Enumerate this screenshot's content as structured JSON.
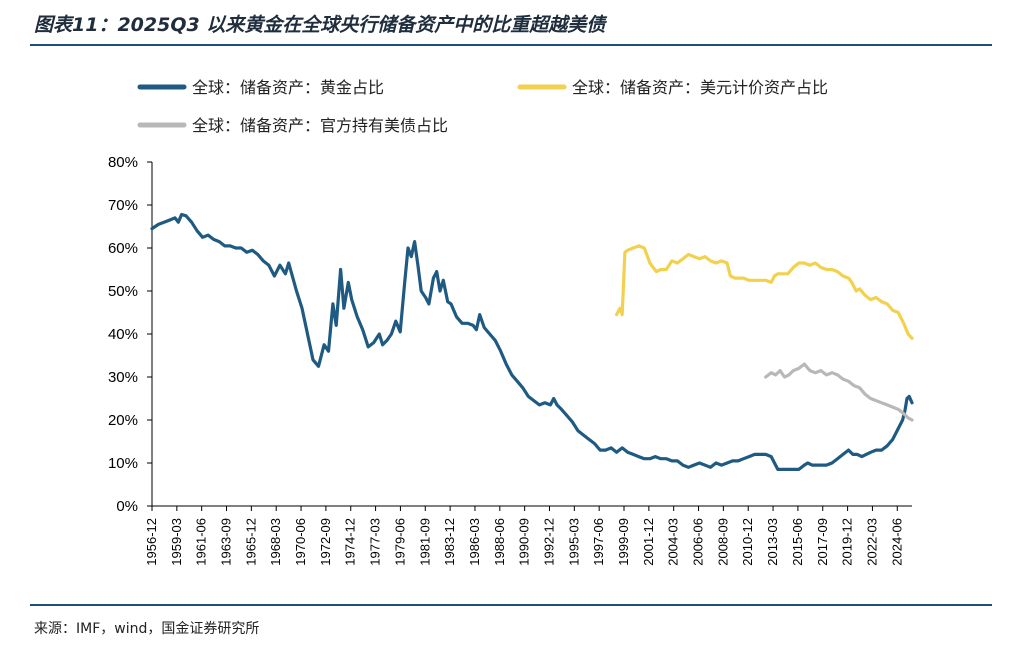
{
  "header": {
    "title": "图表11：2025Q3 以来黄金在全球央行储备资产中的比重超越美债"
  },
  "footer": {
    "source": "来源：IMF，wind，国金证券研究所"
  },
  "colors": {
    "gold_share": "#1f5a82",
    "usd_assets": "#f2d14f",
    "us_treasury": "#b8b8b8",
    "rule": "#1f4e79"
  },
  "chart_data": {
    "type": "line",
    "title": "",
    "xlabel": "",
    "ylabel": "",
    "ylim": [
      0,
      80
    ],
    "yticks": [
      "0%",
      "10%",
      "20%",
      "30%",
      "40%",
      "50%",
      "60%",
      "70%",
      "80%"
    ],
    "x_range": [
      1956.917,
      2025.75
    ],
    "xticks": [
      "1956-12",
      "1959-03",
      "1961-06",
      "1963-09",
      "1965-12",
      "1968-03",
      "1970-06",
      "1972-09",
      "1974-12",
      "1977-03",
      "1979-06",
      "1981-09",
      "1983-12",
      "1986-03",
      "1988-06",
      "1990-09",
      "1992-12",
      "1995-03",
      "1997-06",
      "1999-09",
      "2001-12",
      "2004-03",
      "2006-06",
      "2008-09",
      "2010-12",
      "2013-03",
      "2015-06",
      "2017-09",
      "2019-12",
      "2022-03",
      "2024-06"
    ],
    "grid": false,
    "legend_position": "top",
    "series": [
      {
        "name": "全球：储备资产：黄金占比",
        "color": "#1f5a82",
        "points": [
          [
            1956.92,
            64.5
          ],
          [
            1957.5,
            65.5
          ],
          [
            1958.0,
            66.0
          ],
          [
            1958.5,
            66.5
          ],
          [
            1959.0,
            67.0
          ],
          [
            1959.3,
            66.0
          ],
          [
            1959.6,
            67.8
          ],
          [
            1960.0,
            67.5
          ],
          [
            1960.5,
            66.0
          ],
          [
            1961.0,
            64.0
          ],
          [
            1961.5,
            62.5
          ],
          [
            1962.0,
            63.0
          ],
          [
            1962.5,
            62.0
          ],
          [
            1963.0,
            61.5
          ],
          [
            1963.5,
            60.5
          ],
          [
            1964.0,
            60.5
          ],
          [
            1964.5,
            60.0
          ],
          [
            1965.0,
            60.0
          ],
          [
            1965.5,
            59.0
          ],
          [
            1966.0,
            59.5
          ],
          [
            1966.5,
            58.5
          ],
          [
            1967.0,
            57.0
          ],
          [
            1967.5,
            56.0
          ],
          [
            1968.0,
            53.5
          ],
          [
            1968.5,
            56.0
          ],
          [
            1969.0,
            54.0
          ],
          [
            1969.3,
            56.5
          ],
          [
            1970.0,
            50.0
          ],
          [
            1970.5,
            46.0
          ],
          [
            1971.0,
            40.0
          ],
          [
            1971.5,
            34.0
          ],
          [
            1972.0,
            32.5
          ],
          [
            1972.5,
            37.5
          ],
          [
            1972.9,
            36.0
          ],
          [
            1973.3,
            47.0
          ],
          [
            1973.6,
            42.0
          ],
          [
            1974.0,
            55.0
          ],
          [
            1974.3,
            46.0
          ],
          [
            1974.7,
            52.0
          ],
          [
            1975.0,
            48.0
          ],
          [
            1975.5,
            44.0
          ],
          [
            1976.0,
            41.0
          ],
          [
            1976.5,
            37.0
          ],
          [
            1977.0,
            38.0
          ],
          [
            1977.5,
            40.0
          ],
          [
            1977.8,
            37.5
          ],
          [
            1978.2,
            38.5
          ],
          [
            1978.6,
            40.0
          ],
          [
            1979.0,
            43.0
          ],
          [
            1979.4,
            40.5
          ],
          [
            1979.8,
            52.0
          ],
          [
            1980.1,
            60.0
          ],
          [
            1980.4,
            58.0
          ],
          [
            1980.7,
            61.5
          ],
          [
            1981.0,
            56.0
          ],
          [
            1981.3,
            50.0
          ],
          [
            1981.7,
            48.5
          ],
          [
            1982.0,
            47.0
          ],
          [
            1982.4,
            53.0
          ],
          [
            1982.7,
            54.5
          ],
          [
            1983.0,
            50.0
          ],
          [
            1983.3,
            52.5
          ],
          [
            1983.7,
            47.5
          ],
          [
            1984.0,
            47.0
          ],
          [
            1984.5,
            44.0
          ],
          [
            1985.0,
            42.5
          ],
          [
            1985.5,
            42.5
          ],
          [
            1986.0,
            42.0
          ],
          [
            1986.3,
            41.0
          ],
          [
            1986.6,
            44.5
          ],
          [
            1987.0,
            41.5
          ],
          [
            1987.5,
            40.0
          ],
          [
            1988.0,
            38.5
          ],
          [
            1988.5,
            36.0
          ],
          [
            1989.0,
            33.0
          ],
          [
            1989.5,
            30.5
          ],
          [
            1990.0,
            29.0
          ],
          [
            1990.5,
            27.5
          ],
          [
            1991.0,
            25.5
          ],
          [
            1991.5,
            24.5
          ],
          [
            1992.0,
            23.5
          ],
          [
            1992.5,
            24.0
          ],
          [
            1993.0,
            23.5
          ],
          [
            1993.3,
            25.0
          ],
          [
            1993.6,
            23.5
          ],
          [
            1994.0,
            22.5
          ],
          [
            1994.5,
            21.0
          ],
          [
            1995.0,
            19.5
          ],
          [
            1995.5,
            17.5
          ],
          [
            1996.0,
            16.5
          ],
          [
            1996.5,
            15.5
          ],
          [
            1997.0,
            14.5
          ],
          [
            1997.5,
            13.0
          ],
          [
            1998.0,
            13.0
          ],
          [
            1998.5,
            13.5
          ],
          [
            1999.0,
            12.5
          ],
          [
            1999.5,
            13.5
          ],
          [
            2000.0,
            12.5
          ],
          [
            2000.5,
            12.0
          ],
          [
            2001.0,
            11.5
          ],
          [
            2001.5,
            11.0
          ],
          [
            2002.0,
            11.0
          ],
          [
            2002.5,
            11.5
          ],
          [
            2003.0,
            11.0
          ],
          [
            2003.5,
            11.0
          ],
          [
            2004.0,
            10.5
          ],
          [
            2004.5,
            10.5
          ],
          [
            2005.0,
            9.5
          ],
          [
            2005.5,
            9.0
          ],
          [
            2006.0,
            9.5
          ],
          [
            2006.5,
            10.0
          ],
          [
            2007.0,
            9.5
          ],
          [
            2007.5,
            9.0
          ],
          [
            2008.0,
            10.0
          ],
          [
            2008.5,
            9.5
          ],
          [
            2009.0,
            10.0
          ],
          [
            2009.5,
            10.5
          ],
          [
            2010.0,
            10.5
          ],
          [
            2010.5,
            11.0
          ],
          [
            2011.0,
            11.5
          ],
          [
            2011.5,
            12.0
          ],
          [
            2012.0,
            12.0
          ],
          [
            2012.5,
            12.0
          ],
          [
            2013.0,
            11.5
          ],
          [
            2013.4,
            9.5
          ],
          [
            2013.6,
            8.5
          ],
          [
            2014.0,
            8.5
          ],
          [
            2014.5,
            8.5
          ],
          [
            2015.0,
            8.5
          ],
          [
            2015.5,
            8.5
          ],
          [
            2016.0,
            9.5
          ],
          [
            2016.3,
            10.0
          ],
          [
            2016.7,
            9.5
          ],
          [
            2017.0,
            9.5
          ],
          [
            2017.5,
            9.5
          ],
          [
            2018.0,
            9.5
          ],
          [
            2018.5,
            10.0
          ],
          [
            2019.0,
            11.0
          ],
          [
            2019.5,
            12.0
          ],
          [
            2020.0,
            13.0
          ],
          [
            2020.4,
            12.0
          ],
          [
            2020.8,
            12.0
          ],
          [
            2021.2,
            11.5
          ],
          [
            2021.6,
            12.0
          ],
          [
            2022.0,
            12.5
          ],
          [
            2022.5,
            13.0
          ],
          [
            2023.0,
            13.0
          ],
          [
            2023.5,
            14.0
          ],
          [
            2024.0,
            15.5
          ],
          [
            2024.5,
            18.0
          ],
          [
            2024.9,
            20.0
          ],
          [
            2025.1,
            22.0
          ],
          [
            2025.3,
            25.0
          ],
          [
            2025.5,
            25.5
          ],
          [
            2025.75,
            24.0
          ]
        ]
      },
      {
        "name": "全球：储备资产：美元计价资产占比",
        "color": "#f2d14f",
        "points": [
          [
            1999.0,
            44.5
          ],
          [
            1999.3,
            46.0
          ],
          [
            1999.5,
            44.5
          ],
          [
            1999.75,
            59.0
          ],
          [
            2000.0,
            59.5
          ],
          [
            2000.5,
            60.0
          ],
          [
            2001.0,
            60.5
          ],
          [
            2001.5,
            60.0
          ],
          [
            2001.8,
            58.0
          ],
          [
            2002.0,
            56.5
          ],
          [
            2002.3,
            55.5
          ],
          [
            2002.6,
            54.5
          ],
          [
            2003.0,
            55.0
          ],
          [
            2003.5,
            55.0
          ],
          [
            2004.0,
            57.0
          ],
          [
            2004.5,
            56.5
          ],
          [
            2005.0,
            57.5
          ],
          [
            2005.5,
            58.5
          ],
          [
            2006.0,
            58.0
          ],
          [
            2006.5,
            57.5
          ],
          [
            2007.0,
            58.0
          ],
          [
            2007.5,
            57.0
          ],
          [
            2008.0,
            56.5
          ],
          [
            2008.5,
            57.0
          ],
          [
            2009.0,
            56.5
          ],
          [
            2009.3,
            53.5
          ],
          [
            2009.7,
            53.0
          ],
          [
            2010.0,
            53.0
          ],
          [
            2010.5,
            53.0
          ],
          [
            2011.0,
            52.5
          ],
          [
            2011.5,
            52.5
          ],
          [
            2012.0,
            52.5
          ],
          [
            2012.5,
            52.5
          ],
          [
            2013.0,
            52.0
          ],
          [
            2013.3,
            53.5
          ],
          [
            2013.6,
            54.0
          ],
          [
            2014.0,
            54.0
          ],
          [
            2014.5,
            54.0
          ],
          [
            2015.0,
            55.5
          ],
          [
            2015.5,
            56.5
          ],
          [
            2016.0,
            56.5
          ],
          [
            2016.5,
            56.0
          ],
          [
            2017.0,
            56.5
          ],
          [
            2017.5,
            55.5
          ],
          [
            2018.0,
            55.0
          ],
          [
            2018.5,
            55.0
          ],
          [
            2019.0,
            54.5
          ],
          [
            2019.5,
            53.5
          ],
          [
            2020.0,
            53.0
          ],
          [
            2020.3,
            52.0
          ],
          [
            2020.7,
            50.0
          ],
          [
            2021.0,
            50.5
          ],
          [
            2021.5,
            49.0
          ],
          [
            2022.0,
            48.0
          ],
          [
            2022.5,
            48.5
          ],
          [
            2023.0,
            47.5
          ],
          [
            2023.5,
            47.0
          ],
          [
            2024.0,
            45.5
          ],
          [
            2024.5,
            45.0
          ],
          [
            2025.0,
            42.5
          ],
          [
            2025.4,
            40.0
          ],
          [
            2025.75,
            39.0
          ]
        ]
      },
      {
        "name": "全球：储备资产：官方持有美债占比",
        "color": "#b8b8b8",
        "points": [
          [
            2012.5,
            30.0
          ],
          [
            2013.0,
            31.0
          ],
          [
            2013.4,
            30.5
          ],
          [
            2013.8,
            31.5
          ],
          [
            2014.2,
            30.0
          ],
          [
            2014.6,
            30.5
          ],
          [
            2015.0,
            31.5
          ],
          [
            2015.5,
            32.0
          ],
          [
            2016.0,
            33.0
          ],
          [
            2016.5,
            31.5
          ],
          [
            2017.0,
            31.0
          ],
          [
            2017.5,
            31.5
          ],
          [
            2018.0,
            30.5
          ],
          [
            2018.5,
            31.0
          ],
          [
            2019.0,
            30.5
          ],
          [
            2019.5,
            29.5
          ],
          [
            2020.0,
            29.0
          ],
          [
            2020.5,
            28.0
          ],
          [
            2021.0,
            27.5
          ],
          [
            2021.5,
            26.0
          ],
          [
            2022.0,
            25.0
          ],
          [
            2022.5,
            24.5
          ],
          [
            2023.0,
            24.0
          ],
          [
            2023.5,
            23.5
          ],
          [
            2024.0,
            23.0
          ],
          [
            2024.5,
            22.5
          ],
          [
            2025.0,
            21.5
          ],
          [
            2025.4,
            20.5
          ],
          [
            2025.75,
            20.0
          ]
        ]
      }
    ]
  }
}
